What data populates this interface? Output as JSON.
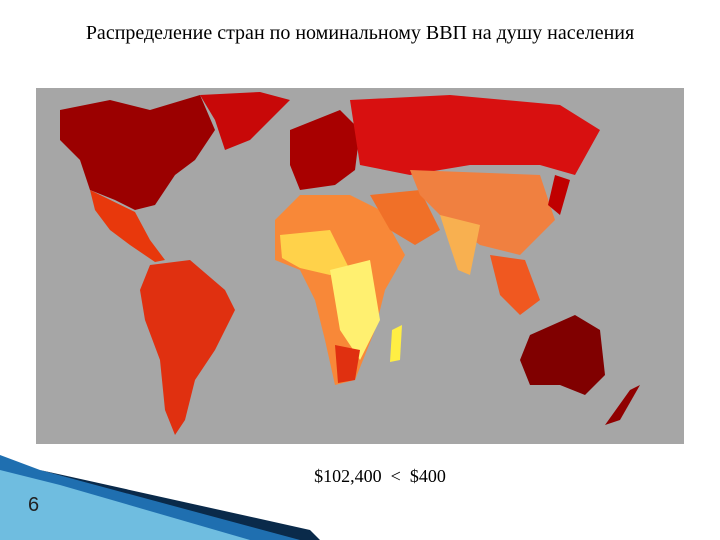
{
  "title": "Распределение стран по номинальному ВВП на душу населения",
  "map": {
    "legend": "$102,400  <  $400"
  },
  "slide_number": "6"
}
